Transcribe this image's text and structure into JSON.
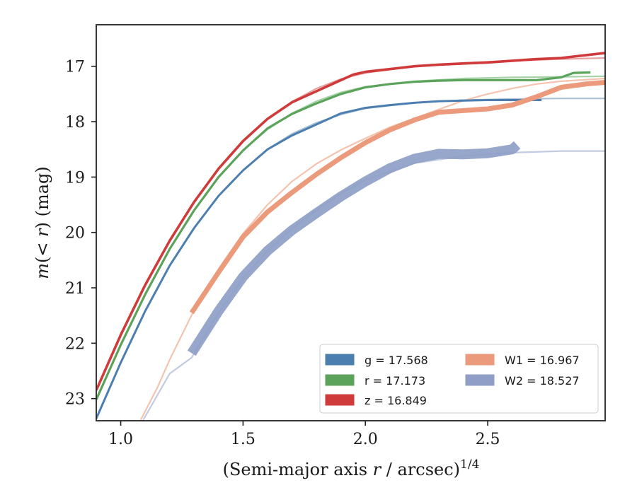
{
  "chart_data": {
    "type": "line",
    "xlabel": "(Semi-major axis r / arcsec)^1/4",
    "ylabel": "m(< r) (mag)",
    "xlim": [
      0.9,
      2.98
    ],
    "ylim": [
      23.4,
      16.25
    ],
    "x_ticks": [
      1.0,
      1.5,
      2.0,
      2.5
    ],
    "x_tick_labels": [
      "1.0",
      "1.5",
      "2.0",
      "2.5"
    ],
    "y_ticks": [
      17,
      18,
      19,
      20,
      21,
      22,
      23
    ],
    "y_tick_labels": [
      "17",
      "18",
      "19",
      "20",
      "21",
      "22",
      "23"
    ],
    "grid": false,
    "legend": {
      "placement": "lower-right",
      "columns": 2
    },
    "series": [
      {
        "name": "g = 17.568",
        "band": "g",
        "total_mag": "17.568",
        "color": "#4c7fb0",
        "model_color": "#a9c0d6",
        "data": [
          [
            0.9,
            23.36
          ],
          [
            1.0,
            22.35
          ],
          [
            1.1,
            21.42
          ],
          [
            1.2,
            20.6
          ],
          [
            1.3,
            19.92
          ],
          [
            1.4,
            19.34
          ],
          [
            1.5,
            18.88
          ],
          [
            1.6,
            18.5
          ],
          [
            1.7,
            18.25
          ],
          [
            1.8,
            18.05
          ],
          [
            1.9,
            17.85
          ],
          [
            2.0,
            17.75
          ],
          [
            2.1,
            17.7
          ],
          [
            2.2,
            17.66
          ],
          [
            2.3,
            17.63
          ],
          [
            2.4,
            17.62
          ],
          [
            2.5,
            17.61
          ],
          [
            2.6,
            17.61
          ],
          [
            2.72,
            17.61
          ]
        ],
        "model": [
          [
            0.9,
            23.36
          ],
          [
            1.0,
            22.35
          ],
          [
            1.1,
            21.42
          ],
          [
            1.2,
            20.6
          ],
          [
            1.3,
            19.92
          ],
          [
            1.4,
            19.34
          ],
          [
            1.5,
            18.88
          ],
          [
            1.6,
            18.5
          ],
          [
            1.7,
            18.22
          ],
          [
            1.8,
            18.02
          ],
          [
            1.9,
            17.87
          ],
          [
            2.0,
            17.76
          ],
          [
            2.2,
            17.66
          ],
          [
            2.4,
            17.61
          ],
          [
            2.6,
            17.59
          ],
          [
            2.8,
            17.58
          ],
          [
            2.98,
            17.58
          ]
        ]
      },
      {
        "name": "r = 17.173",
        "band": "r",
        "total_mag": "17.173",
        "color": "#5ba35b",
        "model_color": "#a8d3a8",
        "data": [
          [
            0.9,
            23.02
          ],
          [
            1.0,
            22.03
          ],
          [
            1.1,
            21.12
          ],
          [
            1.2,
            20.3
          ],
          [
            1.3,
            19.6
          ],
          [
            1.4,
            19.0
          ],
          [
            1.5,
            18.52
          ],
          [
            1.6,
            18.12
          ],
          [
            1.7,
            17.86
          ],
          [
            1.8,
            17.67
          ],
          [
            1.9,
            17.5
          ],
          [
            2.0,
            17.38
          ],
          [
            2.1,
            17.32
          ],
          [
            2.2,
            17.28
          ],
          [
            2.3,
            17.26
          ],
          [
            2.4,
            17.25
          ],
          [
            2.6,
            17.25
          ],
          [
            2.7,
            17.25
          ],
          [
            2.8,
            17.2
          ],
          [
            2.85,
            17.12
          ],
          [
            2.92,
            17.11
          ]
        ],
        "model": [
          [
            0.9,
            23.0
          ],
          [
            1.0,
            22.03
          ],
          [
            1.1,
            21.12
          ],
          [
            1.2,
            20.3
          ],
          [
            1.3,
            19.6
          ],
          [
            1.4,
            19.0
          ],
          [
            1.5,
            18.52
          ],
          [
            1.6,
            18.14
          ],
          [
            1.7,
            17.85
          ],
          [
            1.8,
            17.63
          ],
          [
            1.9,
            17.47
          ],
          [
            2.0,
            17.37
          ],
          [
            2.2,
            17.27
          ],
          [
            2.4,
            17.22
          ],
          [
            2.6,
            17.2
          ],
          [
            2.8,
            17.19
          ],
          [
            2.98,
            17.18
          ]
        ]
      },
      {
        "name": "z = 16.849",
        "band": "z",
        "total_mag": "16.849",
        "color": "#cf3b3b",
        "model_color": "#e6a3a3",
        "data": [
          [
            0.9,
            22.85
          ],
          [
            1.0,
            21.85
          ],
          [
            1.1,
            20.95
          ],
          [
            1.2,
            20.15
          ],
          [
            1.3,
            19.45
          ],
          [
            1.4,
            18.85
          ],
          [
            1.5,
            18.35
          ],
          [
            1.6,
            17.95
          ],
          [
            1.7,
            17.65
          ],
          [
            1.8,
            17.45
          ],
          [
            1.9,
            17.25
          ],
          [
            1.95,
            17.15
          ],
          [
            2.0,
            17.1
          ],
          [
            2.1,
            17.05
          ],
          [
            2.2,
            17.0
          ],
          [
            2.3,
            16.97
          ],
          [
            2.4,
            16.95
          ],
          [
            2.5,
            16.93
          ],
          [
            2.6,
            16.9
          ],
          [
            2.7,
            16.87
          ],
          [
            2.8,
            16.85
          ],
          [
            2.9,
            16.8
          ],
          [
            2.98,
            16.76
          ]
        ],
        "model": [
          [
            0.9,
            22.85
          ],
          [
            1.0,
            21.85
          ],
          [
            1.1,
            20.95
          ],
          [
            1.2,
            20.15
          ],
          [
            1.3,
            19.45
          ],
          [
            1.4,
            18.85
          ],
          [
            1.5,
            18.35
          ],
          [
            1.6,
            17.95
          ],
          [
            1.7,
            17.64
          ],
          [
            1.8,
            17.4
          ],
          [
            1.9,
            17.23
          ],
          [
            2.0,
            17.12
          ],
          [
            2.2,
            17.0
          ],
          [
            2.4,
            16.94
          ],
          [
            2.6,
            16.9
          ],
          [
            2.8,
            16.87
          ],
          [
            2.98,
            16.85
          ]
        ]
      },
      {
        "name": "W1 = 16.967",
        "band": "W1",
        "total_mag": "16.967",
        "color": "#ec9a7c",
        "model_color": "#f4c4b0",
        "data": [
          [
            1.29,
            21.45
          ],
          [
            1.4,
            20.72
          ],
          [
            1.5,
            20.08
          ],
          [
            1.6,
            19.63
          ],
          [
            1.7,
            19.28
          ],
          [
            1.8,
            18.95
          ],
          [
            1.9,
            18.65
          ],
          [
            2.0,
            18.38
          ],
          [
            2.1,
            18.15
          ],
          [
            2.2,
            17.97
          ],
          [
            2.3,
            17.83
          ],
          [
            2.4,
            17.8
          ],
          [
            2.5,
            17.77
          ],
          [
            2.6,
            17.7
          ],
          [
            2.7,
            17.55
          ],
          [
            2.8,
            17.38
          ],
          [
            2.9,
            17.32
          ],
          [
            2.98,
            17.29
          ]
        ],
        "model": [
          [
            1.08,
            23.4
          ],
          [
            1.15,
            22.8
          ],
          [
            1.2,
            22.3
          ],
          [
            1.3,
            21.4
          ],
          [
            1.4,
            20.66
          ],
          [
            1.5,
            20.02
          ],
          [
            1.6,
            19.5
          ],
          [
            1.7,
            19.08
          ],
          [
            1.8,
            18.76
          ],
          [
            1.9,
            18.51
          ],
          [
            2.0,
            18.3
          ],
          [
            2.1,
            18.1
          ],
          [
            2.2,
            17.94
          ],
          [
            2.3,
            17.78
          ],
          [
            2.4,
            17.62
          ],
          [
            2.5,
            17.5
          ],
          [
            2.6,
            17.4
          ],
          [
            2.7,
            17.32
          ],
          [
            2.8,
            17.27
          ],
          [
            2.98,
            17.22
          ]
        ]
      },
      {
        "name": "W2 = 18.527",
        "band": "W2",
        "total_mag": "18.527",
        "color": "#8e9ec7",
        "model_color": "#c3cbe2",
        "data": [
          [
            1.29,
            22.18
          ],
          [
            1.4,
            21.42
          ],
          [
            1.5,
            20.8
          ],
          [
            1.6,
            20.33
          ],
          [
            1.7,
            19.96
          ],
          [
            1.8,
            19.65
          ],
          [
            1.9,
            19.35
          ],
          [
            2.0,
            19.08
          ],
          [
            2.1,
            18.84
          ],
          [
            2.2,
            18.67
          ],
          [
            2.3,
            18.58
          ],
          [
            2.4,
            18.59
          ],
          [
            2.5,
            18.57
          ],
          [
            2.6,
            18.5
          ],
          [
            2.62,
            18.42
          ]
        ],
        "model": [
          [
            1.09,
            23.4
          ],
          [
            1.2,
            22.55
          ],
          [
            1.29,
            22.26
          ],
          [
            1.4,
            21.45
          ],
          [
            1.5,
            20.83
          ],
          [
            1.6,
            20.33
          ],
          [
            1.7,
            19.93
          ],
          [
            1.8,
            19.6
          ],
          [
            1.9,
            19.3
          ],
          [
            2.0,
            19.05
          ],
          [
            2.2,
            18.75
          ],
          [
            2.4,
            18.62
          ],
          [
            2.6,
            18.56
          ],
          [
            2.8,
            18.53
          ],
          [
            2.98,
            18.53
          ]
        ]
      }
    ]
  }
}
